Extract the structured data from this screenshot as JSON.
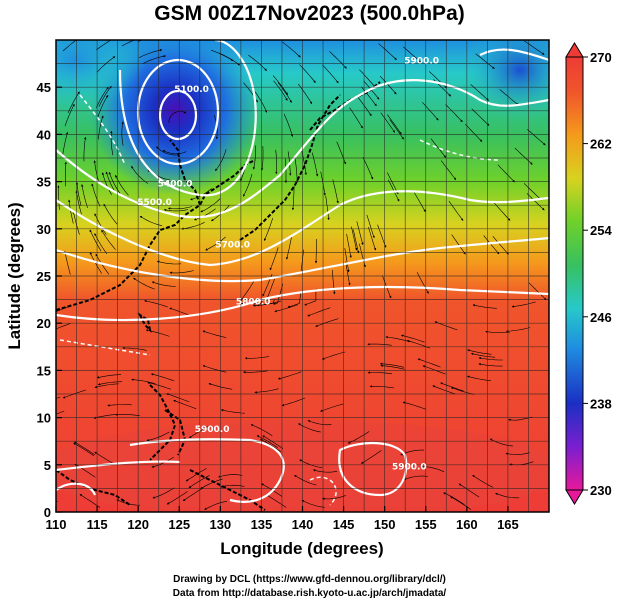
{
  "title": "GSM 00Z17Nov2023 (500.0hPa)",
  "credits": {
    "line1": "Drawing by DCL (https://www.gfd-dennou.org/library/dcl/)",
    "line2": "Data from http://database.rish.kyoto-u.ac.jp/arch/jmadata/"
  },
  "chart_data": {
    "type": "heatmap",
    "xlabel": "Longitude (degrees)",
    "ylabel": "Latitude  (degrees)",
    "xlim": [
      110,
      170
    ],
    "ylim": [
      0,
      50
    ],
    "x_ticks": [
      "110",
      "115",
      "120",
      "125",
      "130",
      "135",
      "140",
      "145",
      "150",
      "155",
      "160",
      "165"
    ],
    "y_ticks": [
      "0",
      "5",
      "10",
      "15",
      "20",
      "25",
      "30",
      "35",
      "40",
      "45"
    ],
    "grid": true,
    "colorbar": {
      "min": 230,
      "max": 270,
      "tick_labels": [
        "270",
        "262",
        "254",
        "246",
        "238",
        "230"
      ],
      "colors": [
        "#e8189a",
        "#7a1fd0",
        "#1b2fc4",
        "#1f8fe0",
        "#27c9c9",
        "#38c060",
        "#6fd12a",
        "#d8d21f",
        "#f59a1c",
        "#f0552b",
        "#ee3b36"
      ]
    },
    "contour_labels": [
      {
        "text": "5400.0",
        "lon": 124.5,
        "lat": 34.5
      },
      {
        "text": "5500.0",
        "lon": 122,
        "lat": 32.5
      },
      {
        "text": "5700.0",
        "lon": 131.5,
        "lat": 28
      },
      {
        "text": "5800.0",
        "lon": 134,
        "lat": 22
      },
      {
        "text": "5900.0",
        "lon": 154.5,
        "lat": 47.5
      },
      {
        "text": "5900.0",
        "lon": 129,
        "lat": 8.5
      },
      {
        "text": "5900.0",
        "lon": 153,
        "lat": 4.5
      },
      {
        "text": "5100.0",
        "lon": 126.5,
        "lat": 44.5
      }
    ]
  }
}
